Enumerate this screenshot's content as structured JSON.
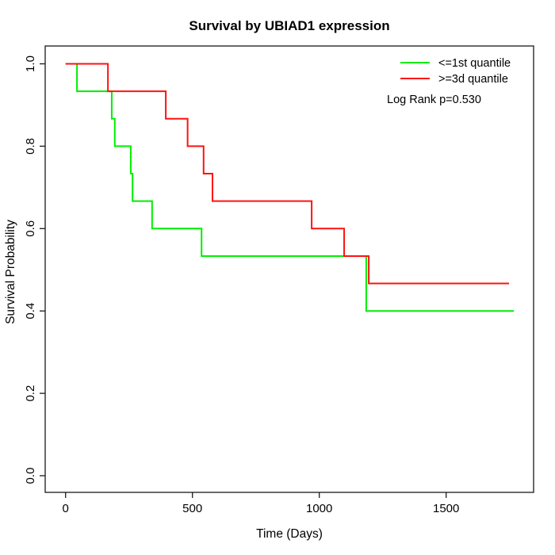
{
  "page": {
    "background": "#ffffff"
  },
  "chart_data": {
    "type": "line",
    "subtype": "kaplan-meier-step",
    "title": "Survival by UBIAD1 expression",
    "xlabel": "Time (Days)",
    "ylabel": "Survival Probability",
    "xlim": [
      -72,
      1872
    ],
    "ylim": [
      -0.04,
      1.04
    ],
    "xticks": [
      0,
      500,
      1000,
      1500
    ],
    "yticks": [
      0.0,
      0.2,
      0.4,
      0.6,
      0.8,
      1.0
    ],
    "ytick_labels": [
      "0.0",
      "0.2",
      "0.4",
      "0.6",
      "0.8",
      "1.0"
    ],
    "grid": false,
    "legend_position": "top-right",
    "annotation": "Log Rank p=0.530",
    "series": [
      {
        "name": "<=1st quantile",
        "color": "#00ee00",
        "end_time": 1767,
        "steps": [
          [
            0,
            1.0
          ],
          [
            45,
            0.9333
          ],
          [
            182,
            0.8667
          ],
          [
            194,
            0.8
          ],
          [
            257,
            0.7333
          ],
          [
            264,
            0.6667
          ],
          [
            341,
            0.6
          ],
          [
            536,
            0.5333
          ],
          [
            1185,
            0.4
          ]
        ]
      },
      {
        "name": ">=3d quantile",
        "color": "#ff1111",
        "end_time": 1748,
        "steps": [
          [
            0,
            1.0
          ],
          [
            167,
            0.9333
          ],
          [
            395,
            0.8667
          ],
          [
            481,
            0.8
          ],
          [
            544,
            0.7333
          ],
          [
            579,
            0.6667
          ],
          [
            970,
            0.6
          ],
          [
            1098,
            0.5333
          ],
          [
            1195,
            0.4667
          ]
        ]
      }
    ]
  },
  "legend": {
    "items": [
      {
        "label": "<=1st quantile",
        "color": "#00ee00"
      },
      {
        "label": ">=3d quantile",
        "color": "#ff1111"
      }
    ],
    "annotation": "Log Rank p=0.530"
  }
}
